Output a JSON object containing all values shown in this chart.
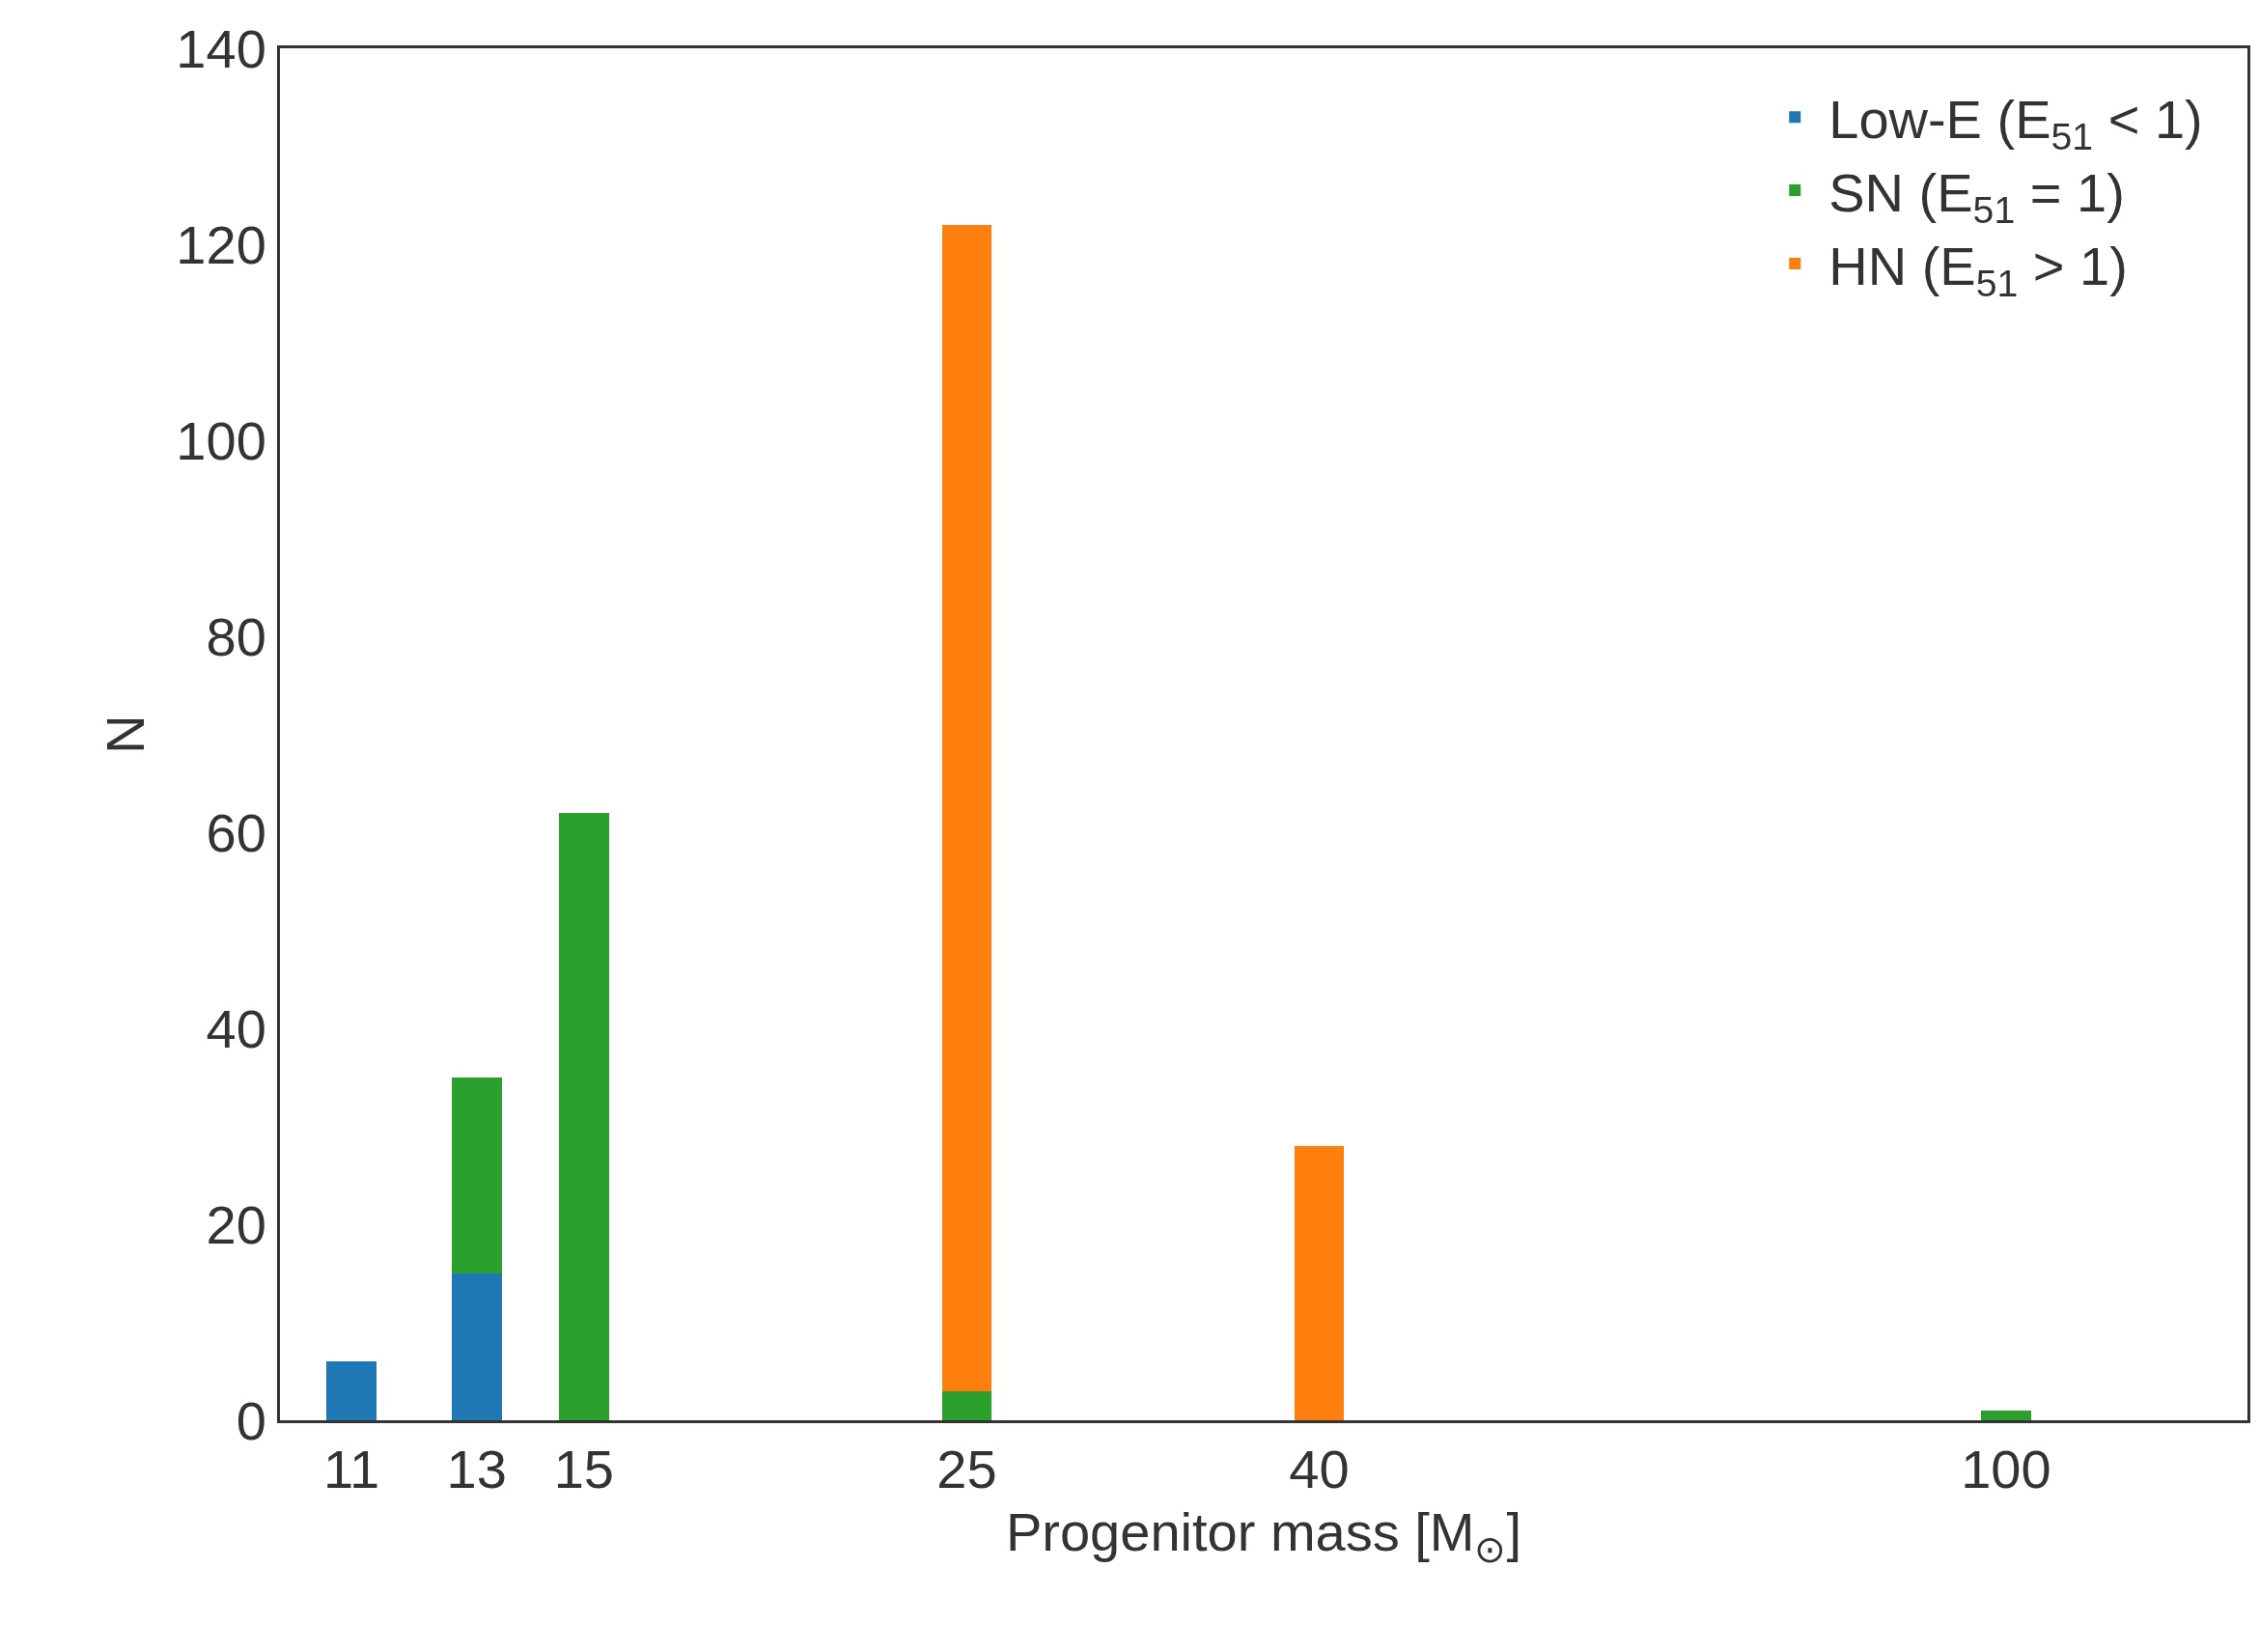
{
  "chart_data": {
    "type": "bar",
    "stacked": true,
    "x": [
      11,
      13,
      15,
      25,
      40,
      100
    ],
    "log": "x",
    "xlabel": "Progenitor mass [M$_{⊙}$]",
    "ylabel": "N",
    "series": [
      {
        "name": "Low-E (E$_{51}$ < 1)",
        "color": "#1f77b4",
        "values": [
          6,
          15,
          null,
          null,
          null,
          null
        ]
      },
      {
        "name": "SN (E$_{51}$ = 1)",
        "color": "#2ca02c",
        "values": [
          null,
          20,
          62,
          3,
          null,
          1
        ]
      },
      {
        "name": "HN (E$_{51}$ > 1)",
        "color": "#ff7f0e",
        "values": [
          null,
          null,
          null,
          119,
          28,
          null
        ]
      }
    ],
    "xlim": [
      10,
      138
    ],
    "xticks": [
      11,
      13,
      15,
      25,
      40,
      100
    ],
    "ylim": [
      0,
      140
    ],
    "yticks": [
      0,
      20,
      40,
      60,
      80,
      100,
      120,
      140
    ],
    "legend": "top right"
  }
}
